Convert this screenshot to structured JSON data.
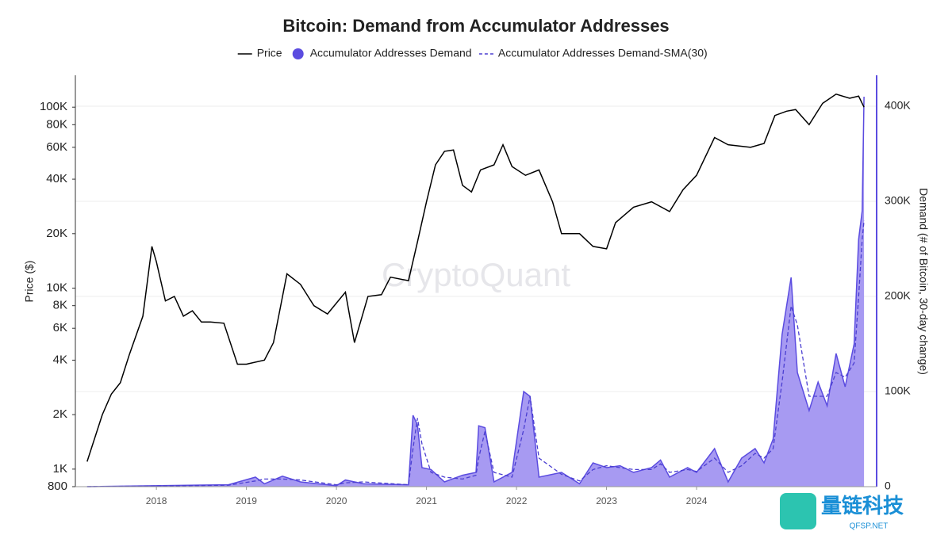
{
  "chart_data": {
    "type": "line",
    "title": "Bitcoin: Demand from Accumulator Addresses",
    "watermark": "CryptoQuant",
    "logo_text": "量链科技",
    "logo_subtext": "QFSP.NET",
    "y_label": "Price ($)",
    "y2_label": "Demand (# of Bitcoin, 30-day change)",
    "xlim": [
      2017.1,
      2026.0
    ],
    "xticks": [
      2018,
      2019,
      2020,
      2021,
      2022,
      2023,
      2024
    ],
    "y_log": true,
    "ylim": [
      800,
      150000
    ],
    "yticks": [
      800,
      {
        "value": 1000,
        "label": "1K"
      },
      {
        "value": 2000,
        "label": "2K"
      },
      {
        "value": 4000,
        "label": "4K"
      },
      {
        "value": 6000,
        "label": "6K"
      },
      {
        "value": 8000,
        "label": "8K"
      },
      {
        "value": 10000,
        "label": "10K"
      },
      {
        "value": 20000,
        "label": "20K"
      },
      {
        "value": 40000,
        "label": "40K"
      },
      {
        "value": 60000,
        "label": "60K"
      },
      {
        "value": 80000,
        "label": "80K"
      },
      {
        "value": 100000,
        "label": "100K"
      }
    ],
    "y2lim": [
      0,
      432500
    ],
    "y2ticks": [
      0,
      {
        "value": 100000,
        "label": "100K"
      },
      {
        "value": 200000,
        "label": "200K"
      },
      {
        "value": 300000,
        "label": "300K"
      },
      {
        "value": 400000,
        "label": "400K"
      }
    ],
    "grid": true,
    "series": [
      {
        "name": "Price",
        "color": "#000000",
        "kind": "line",
        "axis": "y",
        "x": [
          2017.23,
          2017.4,
          2017.5,
          2017.6,
          2017.7,
          2017.85,
          2017.95,
          2018.0,
          2018.1,
          2018.2,
          2018.3,
          2018.4,
          2018.5,
          2018.6,
          2018.75,
          2018.9,
          2019.0,
          2019.2,
          2019.3,
          2019.45,
          2019.6,
          2019.75,
          2019.9,
          2020.1,
          2020.2,
          2020.35,
          2020.5,
          2020.6,
          2020.8,
          2020.9,
          2021.0,
          2021.1,
          2021.2,
          2021.3,
          2021.4,
          2021.5,
          2021.6,
          2021.75,
          2021.85,
          2021.95,
          2022.1,
          2022.25,
          2022.4,
          2022.5,
          2022.7,
          2022.85,
          2023.0,
          2023.1,
          2023.3,
          2023.5,
          2023.7,
          2023.85,
          2024.0,
          2024.2,
          2024.35,
          2024.6,
          2024.75,
          2024.87,
          2025.0,
          2025.1,
          2025.25,
          2025.4,
          2025.55,
          2025.7,
          2025.8,
          2025.86
        ],
        "values": [
          1100,
          2000,
          2600,
          3000,
          4300,
          7000,
          17000,
          14000,
          8500,
          9000,
          7000,
          7500,
          6500,
          6500,
          6400,
          3800,
          3800,
          4000,
          5000,
          12000,
          10500,
          8000,
          7200,
          9500,
          5000,
          9000,
          9200,
          11500,
          11000,
          18000,
          30000,
          48000,
          57000,
          58000,
          37000,
          34000,
          45000,
          48000,
          62000,
          47000,
          42000,
          45000,
          30000,
          20000,
          20000,
          17000,
          16500,
          23000,
          28000,
          30000,
          26500,
          35000,
          42000,
          68000,
          62000,
          60000,
          63000,
          90000,
          95000,
          97000,
          80000,
          105000,
          118000,
          112000,
          115000,
          100000
        ]
      },
      {
        "name": "Accumulator Addresses Demand",
        "color": "#5b4ce0",
        "fill": "#a79af2",
        "kind": "area",
        "axis": "y2",
        "x": [
          2017.23,
          2018.8,
          2019.1,
          2019.2,
          2019.4,
          2019.6,
          2020.0,
          2020.1,
          2020.3,
          2020.8,
          2020.85,
          2020.9,
          2020.95,
          2021.05,
          2021.2,
          2021.4,
          2021.55,
          2021.58,
          2021.65,
          2021.75,
          2021.95,
          2022.08,
          2022.15,
          2022.25,
          2022.5,
          2022.7,
          2022.85,
          2023.0,
          2023.15,
          2023.3,
          2023.5,
          2023.6,
          2023.7,
          2023.9,
          2024.0,
          2024.2,
          2024.35,
          2024.5,
          2024.65,
          2024.75,
          2024.85,
          2024.95,
          2025.05,
          2025.12,
          2025.25,
          2025.35,
          2025.45,
          2025.55,
          2025.65,
          2025.75,
          2025.8,
          2025.84,
          2025.86
        ],
        "values": [
          0,
          2000,
          10000,
          3000,
          11000,
          5000,
          1000,
          7000,
          3000,
          2000,
          75000,
          65000,
          20000,
          18000,
          5000,
          12000,
          15000,
          64000,
          62000,
          5000,
          15000,
          100000,
          95000,
          10000,
          15000,
          3000,
          25000,
          20000,
          22000,
          15000,
          20000,
          28000,
          10000,
          20000,
          15000,
          40000,
          5000,
          30000,
          40000,
          25000,
          50000,
          160000,
          220000,
          120000,
          80000,
          110000,
          85000,
          140000,
          105000,
          150000,
          260000,
          290000,
          410000
        ]
      },
      {
        "name": "Accumulator Addresses Demand-SMA(30)",
        "color": "#4b3fd1",
        "kind": "dashed",
        "axis": "y2",
        "x": [
          2017.23,
          2018.8,
          2019.1,
          2019.2,
          2019.4,
          2019.6,
          2020.0,
          2020.1,
          2020.3,
          2020.8,
          2020.85,
          2020.9,
          2020.95,
          2021.05,
          2021.2,
          2021.4,
          2021.55,
          2021.58,
          2021.65,
          2021.75,
          2021.95,
          2022.08,
          2022.15,
          2022.25,
          2022.5,
          2022.7,
          2022.85,
          2023.0,
          2023.15,
          2023.3,
          2023.5,
          2023.6,
          2023.7,
          2023.9,
          2024.0,
          2024.2,
          2024.35,
          2024.5,
          2024.65,
          2024.75,
          2024.85,
          2024.95,
          2025.05,
          2025.12,
          2025.25,
          2025.35,
          2025.45,
          2025.55,
          2025.65,
          2025.75,
          2025.8,
          2025.84,
          2025.86
        ],
        "values": [
          0,
          1500,
          6000,
          8000,
          8000,
          7000,
          2000,
          4000,
          5000,
          2000,
          40000,
          72000,
          45000,
          15000,
          10000,
          8000,
          12000,
          30000,
          58000,
          15000,
          10000,
          60000,
          95000,
          30000,
          13000,
          6000,
          18000,
          22000,
          20000,
          18000,
          18000,
          24000,
          15000,
          18000,
          16000,
          30000,
          15000,
          22000,
          35000,
          30000,
          40000,
          110000,
          190000,
          170000,
          95000,
          95000,
          95000,
          120000,
          115000,
          130000,
          200000,
          260000,
          280000
        ]
      }
    ]
  }
}
